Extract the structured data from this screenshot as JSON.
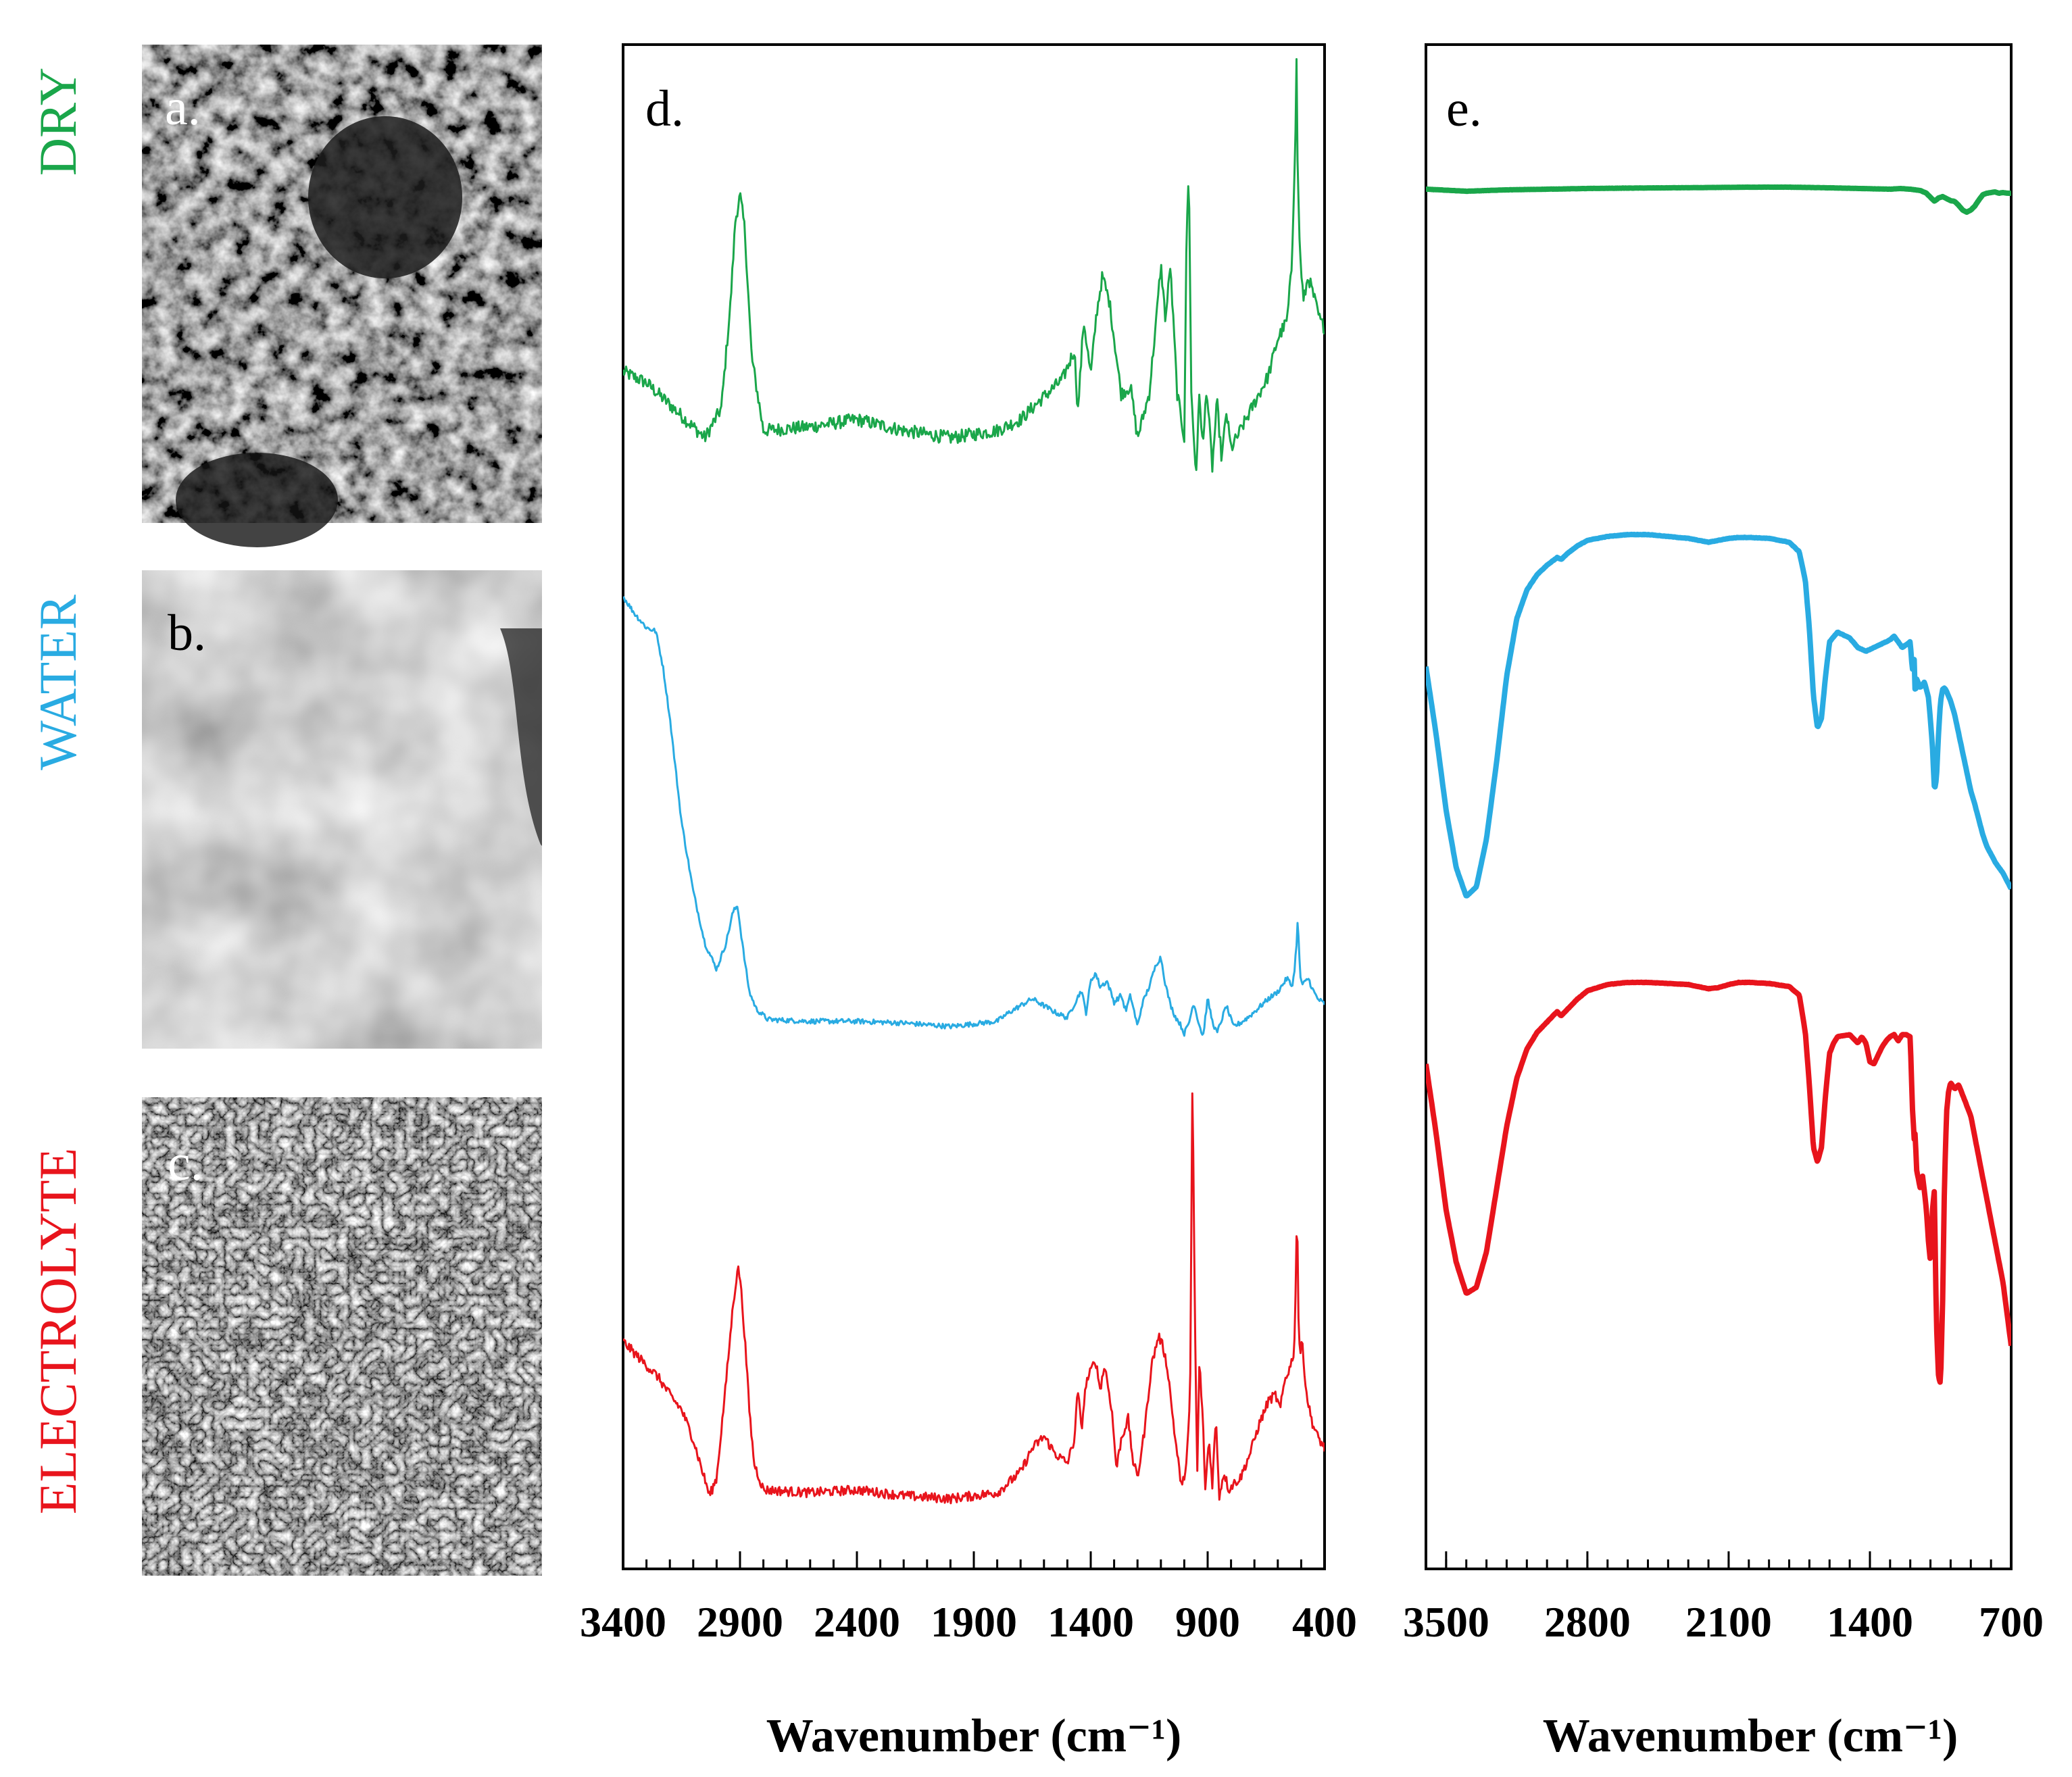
{
  "figure": {
    "row_labels": [
      {
        "key": "dry",
        "text": "DRY",
        "color": "#1aa64a"
      },
      {
        "key": "water",
        "text": "WATER",
        "color": "#29abe2"
      },
      {
        "key": "electrolyte",
        "text": "ELECTROLYTE",
        "color": "#e8141c"
      }
    ],
    "micrographs": [
      {
        "label": "a.",
        "texture": "dark-rough",
        "letter_color": "#ffffff"
      },
      {
        "label": "b.",
        "texture": "grey-smooth",
        "letter_color": "#000000"
      },
      {
        "label": "c.",
        "texture": "dark-fibrous",
        "letter_color": "#ffffff"
      }
    ]
  },
  "chart_data": [
    {
      "panel": "d.",
      "type": "line",
      "xlabel": "Wavenumber (cm⁻¹)",
      "xlim": [
        3400,
        400
      ],
      "x_reversed": true,
      "xticks": [
        3400,
        2900,
        2400,
        1900,
        1400,
        900,
        400
      ],
      "y_axis": "none",
      "offset_stacked": true,
      "series": [
        {
          "key": "dry",
          "color": "#1aa64a",
          "noise": 1.0,
          "x": [
            3400,
            3300,
            3150,
            3050,
            2980,
            2940,
            2920,
            2900,
            2880,
            2850,
            2800,
            2600,
            2400,
            2200,
            2000,
            1800,
            1700,
            1620,
            1520,
            1470,
            1455,
            1430,
            1400,
            1375,
            1350,
            1320,
            1300,
            1270,
            1230,
            1200,
            1150,
            1120,
            1100,
            1080,
            1060,
            1030,
            1000,
            990,
            980,
            970,
            950,
            935,
            920,
            905,
            880,
            860,
            840,
            820,
            800,
            760,
            720,
            680,
            640,
            600,
            560,
            540,
            525,
            520,
            515,
            505,
            490,
            470,
            440,
            420,
            400
          ],
          "y": [
            3.6,
            3.3,
            2.4,
            1.8,
            2.6,
            5.5,
            7.7,
            8.4,
            7.5,
            4.0,
            2.0,
            2.1,
            2.3,
            2.0,
            1.8,
            2.0,
            2.3,
            2.8,
            3.4,
            4.2,
            2.5,
            5.0,
            3.5,
            5.2,
            6.2,
            5.5,
            4.5,
            3.0,
            3.2,
            1.8,
            3.0,
            5.0,
            6.5,
            5.0,
            6.5,
            3.0,
            1.8,
            7.5,
            9.0,
            3.0,
            0.8,
            3.0,
            1.5,
            3.2,
            1.0,
            2.8,
            1.2,
            2.5,
            1.5,
            2.0,
            2.5,
            3.0,
            3.5,
            4.5,
            5.0,
            6.5,
            10.0,
            12.0,
            9.0,
            6.8,
            5.5,
            6.2,
            5.5,
            5.0,
            4.8
          ]
        },
        {
          "key": "water",
          "color": "#29abe2",
          "noise": 0.8,
          "x": [
            3400,
            3350,
            3300,
            3260,
            3230,
            3200,
            3150,
            3100,
            3050,
            3000,
            2960,
            2930,
            2910,
            2900,
            2880,
            2860,
            2830,
            2780,
            2600,
            2400,
            2200,
            2000,
            1800,
            1750,
            1700,
            1650,
            1600,
            1550,
            1500,
            1470,
            1440,
            1420,
            1400,
            1380,
            1360,
            1330,
            1300,
            1270,
            1250,
            1230,
            1200,
            1180,
            1150,
            1120,
            1100,
            1080,
            1060,
            1040,
            1020,
            1000,
            980,
            960,
            940,
            920,
            900,
            880,
            860,
            840,
            820,
            790,
            760,
            720,
            680,
            640,
            600,
            560,
            540,
            530,
            520,
            515,
            510,
            505,
            495,
            480,
            470,
            450,
            430,
            400
          ],
          "y": [
            26.0,
            25.0,
            24.2,
            24.0,
            22.0,
            19.0,
            13.0,
            9.0,
            6.0,
            4.5,
            6.0,
            7.8,
            8.2,
            7.0,
            5.0,
            3.2,
            2.2,
            1.6,
            1.5,
            1.5,
            1.4,
            1.2,
            1.5,
            2.0,
            2.4,
            2.8,
            2.4,
            2.0,
            1.7,
            2.5,
            3.3,
            2.0,
            3.8,
            4.3,
            3.5,
            3.8,
            2.6,
            3.0,
            2.1,
            3.0,
            1.2,
            2.5,
            3.5,
            4.8,
            5.2,
            3.6,
            2.5,
            1.8,
            1.4,
            0.8,
            1.4,
            2.6,
            1.5,
            0.6,
            2.8,
            1.5,
            0.8,
            1.6,
            2.4,
            1.2,
            1.4,
            1.8,
            2.3,
            2.8,
            3.2,
            4.0,
            3.5,
            4.2,
            6.0,
            7.3,
            6.0,
            4.2,
            3.6,
            3.8,
            4.0,
            3.3,
            2.8,
            2.5
          ]
        },
        {
          "key": "electrolyte",
          "color": "#e8141c",
          "noise": 0.9,
          "x": [
            3400,
            3350,
            3300,
            3250,
            3200,
            3150,
            3100,
            3060,
            3030,
            3000,
            2960,
            2930,
            2910,
            2900,
            2880,
            2860,
            2840,
            2800,
            2600,
            2400,
            2200,
            2000,
            1800,
            1700,
            1650,
            1600,
            1550,
            1500,
            1470,
            1455,
            1440,
            1420,
            1400,
            1380,
            1360,
            1340,
            1310,
            1290,
            1270,
            1240,
            1220,
            1200,
            1170,
            1140,
            1110,
            1090,
            1070,
            1040,
            1010,
            990,
            975,
            965,
            955,
            945,
            935,
            920,
            910,
            895,
            880,
            865,
            850,
            830,
            810,
            790,
            760,
            720,
            680,
            640,
            610,
            590,
            570,
            545,
            530,
            522,
            518,
            513,
            505,
            495,
            480,
            465,
            450,
            430,
            400
          ],
          "y": [
            3.8,
            3.4,
            3.0,
            2.6,
            2.0,
            1.5,
            0.5,
            -0.6,
            -1.4,
            -0.8,
            2.4,
            5.0,
            6.3,
            6.0,
            4.0,
            1.5,
            -0.3,
            -1.2,
            -1.3,
            -1.2,
            -1.4,
            -1.5,
            -1.3,
            -0.6,
            0.2,
            0.6,
            0.0,
            -0.3,
            0.5,
            2.2,
            0.8,
            2.4,
            2.8,
            3.2,
            2.2,
            3.0,
            1.5,
            -0.5,
            0.5,
            1.2,
            -0.2,
            -0.8,
            0.8,
            3.0,
            4.0,
            3.6,
            2.8,
            0.6,
            -1.2,
            -0.2,
            1.8,
            13.0,
            5.0,
            -0.8,
            3.2,
            1.0,
            -1.2,
            0.5,
            -1.0,
            1.2,
            -1.4,
            -0.6,
            -1.2,
            -1.0,
            -0.8,
            0.0,
            1.0,
            1.8,
            2.0,
            1.5,
            2.5,
            3.0,
            3.5,
            6.0,
            9.0,
            5.0,
            3.3,
            3.8,
            2.2,
            1.5,
            1.0,
            0.6,
            0.2
          ]
        }
      ]
    },
    {
      "panel": "e.",
      "type": "line",
      "xlabel": "Wavenumber (cm⁻¹)",
      "xlim": [
        3600,
        700
      ],
      "x_reversed": true,
      "xticks": [
        3500,
        2800,
        2100,
        1400,
        700
      ],
      "y_axis": "none",
      "offset_stacked": true,
      "series": [
        {
          "key": "dry",
          "color": "#1aa64a",
          "noise": 0.04,
          "x": [
            3600,
            3400,
            3200,
            3000,
            2800,
            2600,
            2400,
            2200,
            2000,
            1800,
            1600,
            1450,
            1300,
            1250,
            1200,
            1150,
            1120,
            1100,
            1080,
            1060,
            1040,
            1020,
            1000,
            980,
            960,
            940,
            920,
            900,
            880,
            860,
            840,
            820,
            800,
            780,
            760,
            740,
            720,
            700
          ],
          "y": [
            30.0,
            29.85,
            29.95,
            30.0,
            30.05,
            30.08,
            30.1,
            30.12,
            30.15,
            30.15,
            30.1,
            30.05,
            30.0,
            30.05,
            30.0,
            29.9,
            29.7,
            29.4,
            29.1,
            29.35,
            29.45,
            29.3,
            29.15,
            29.1,
            28.8,
            28.45,
            28.3,
            28.45,
            28.75,
            29.2,
            29.6,
            29.7,
            29.75,
            29.8,
            29.7,
            29.75,
            29.7,
            29.7
          ]
        },
        {
          "key": "water",
          "color": "#29abe2",
          "noise": 0.06,
          "x": [
            3600,
            3550,
            3500,
            3450,
            3400,
            3350,
            3300,
            3250,
            3200,
            3150,
            3100,
            3050,
            3000,
            2950,
            2930,
            2900,
            2850,
            2800,
            2700,
            2600,
            2500,
            2400,
            2300,
            2200,
            2150,
            2100,
            2050,
            2000,
            1900,
            1800,
            1750,
            1720,
            1700,
            1680,
            1660,
            1640,
            1620,
            1600,
            1560,
            1500,
            1460,
            1420,
            1380,
            1340,
            1300,
            1280,
            1240,
            1200,
            1190,
            1180,
            1175,
            1170,
            1150,
            1130,
            1110,
            1100,
            1090,
            1080,
            1070,
            1060,
            1050,
            1040,
            1030,
            1020,
            1000,
            980,
            960,
            940,
            920,
            900,
            880,
            860,
            840,
            820,
            800,
            780,
            760,
            740,
            720,
            700
          ],
          "y": [
            18.0,
            14.5,
            10.5,
            7.5,
            6.0,
            6.5,
            9.0,
            13.0,
            17.5,
            20.5,
            22.0,
            22.8,
            23.3,
            23.7,
            23.6,
            23.9,
            24.3,
            24.6,
            24.8,
            24.9,
            24.9,
            24.8,
            24.7,
            24.5,
            24.6,
            24.7,
            24.75,
            24.75,
            24.7,
            24.5,
            24.0,
            22.5,
            20.0,
            16.5,
            14.8,
            15.3,
            17.5,
            19.3,
            19.8,
            19.5,
            19.0,
            18.8,
            19.0,
            19.2,
            19.4,
            19.6,
            19.0,
            19.3,
            17.8,
            18.4,
            16.2,
            17.4,
            16.9,
            17.2,
            16.4,
            15.2,
            13.8,
            11.5,
            12.2,
            14.5,
            16.2,
            16.8,
            16.9,
            16.7,
            16.2,
            15.5,
            14.5,
            13.5,
            12.5,
            11.5,
            10.8,
            10.0,
            9.2,
            8.6,
            8.2,
            7.8,
            7.5,
            7.2,
            6.8,
            6.4
          ]
        },
        {
          "key": "electrolyte",
          "color": "#e8141c",
          "noise": 0.05,
          "x": [
            3600,
            3550,
            3500,
            3450,
            3400,
            3350,
            3300,
            3250,
            3200,
            3150,
            3100,
            3050,
            3000,
            2950,
            2930,
            2900,
            2850,
            2800,
            2700,
            2600,
            2500,
            2400,
            2300,
            2200,
            2150,
            2100,
            2050,
            2000,
            1900,
            1800,
            1750,
            1720,
            1700,
            1680,
            1660,
            1640,
            1620,
            1600,
            1580,
            1560,
            1500,
            1460,
            1440,
            1420,
            1400,
            1380,
            1360,
            1340,
            1320,
            1300,
            1280,
            1260,
            1240,
            1220,
            1200,
            1190,
            1180,
            1175,
            1170,
            1160,
            1150,
            1140,
            1130,
            1120,
            1110,
            1100,
            1090,
            1080,
            1075,
            1070,
            1060,
            1050,
            1040,
            1030,
            1020,
            1010,
            1000,
            980,
            960,
            940,
            920,
            900,
            880,
            860,
            840,
            820,
            800,
            780,
            760,
            740,
            720,
            700
          ],
          "y": [
            3.5,
            0.2,
            -3.5,
            -6.0,
            -7.5,
            -7.2,
            -5.5,
            -2.5,
            0.5,
            2.8,
            4.2,
            5.0,
            5.5,
            6.0,
            5.8,
            6.1,
            6.6,
            7.0,
            7.3,
            7.4,
            7.4,
            7.35,
            7.3,
            7.1,
            7.15,
            7.3,
            7.4,
            7.4,
            7.35,
            7.2,
            6.8,
            5.0,
            2.5,
            -0.5,
            -1.2,
            -0.5,
            2.0,
            4.0,
            4.5,
            4.8,
            4.9,
            4.5,
            4.8,
            4.5,
            3.6,
            3.5,
            3.9,
            4.3,
            4.6,
            4.8,
            4.9,
            4.6,
            4.9,
            4.9,
            4.8,
            1.5,
            -0.2,
            0.3,
            -1.5,
            -2.0,
            -2.5,
            -1.8,
            -2.6,
            -3.5,
            -5.0,
            -6.0,
            -3.5,
            -2.5,
            -6.5,
            -9.0,
            -11.5,
            -11.8,
            -8.0,
            -2.0,
            1.2,
            2.2,
            2.6,
            2.3,
            2.5,
            2.0,
            1.5,
            1.0,
            0.0,
            -1.0,
            -2.0,
            -3.0,
            -4.0,
            -5.0,
            -6.0,
            -7.0,
            -8.5,
            -10.0
          ]
        }
      ]
    }
  ]
}
